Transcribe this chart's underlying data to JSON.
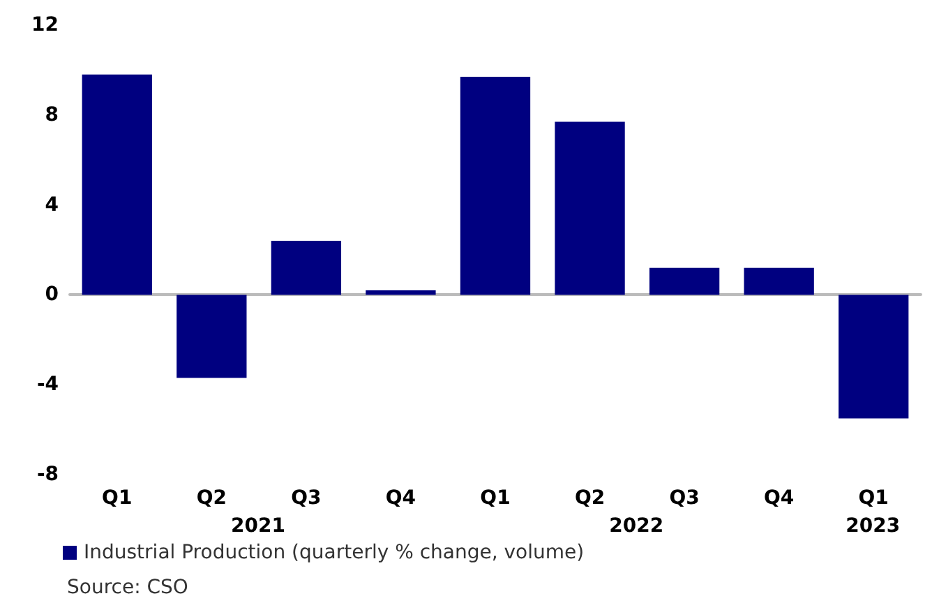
{
  "chart_data": {
    "type": "bar",
    "categories": [
      "Q1",
      "Q2",
      "Q3",
      "Q4",
      "Q1",
      "Q2",
      "Q3",
      "Q4",
      "Q1"
    ],
    "series": [
      {
        "name": "Industrial Production (quarterly % change, volume)",
        "color": "#000080",
        "values": [
          9.8,
          -3.7,
          2.4,
          0.2,
          9.7,
          7.7,
          1.2,
          1.2,
          -5.5
        ]
      }
    ],
    "ylim": [
      -8,
      12
    ],
    "yticks": [
      -8,
      -4,
      0,
      4,
      8,
      12
    ],
    "legend": "bottom left",
    "annotations": [
      "2021",
      "2022",
      "2023",
      "Source: CSO"
    ]
  }
}
